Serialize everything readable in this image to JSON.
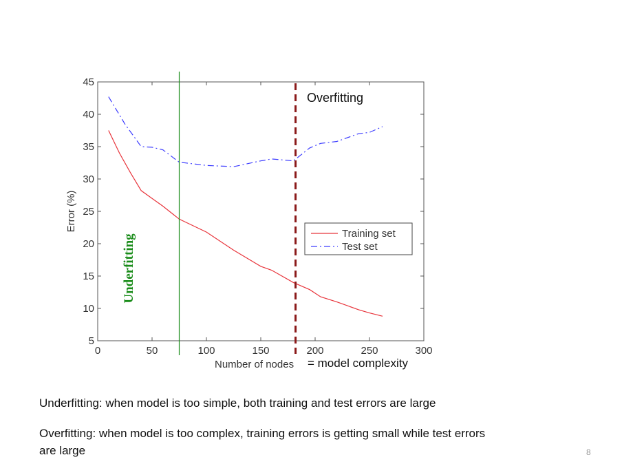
{
  "chart_data": {
    "type": "line",
    "xlabel": "Number of nodes",
    "ylabel": "Error (%)",
    "xlim": [
      0,
      300
    ],
    "ylim": [
      5,
      45
    ],
    "xticks": [
      0,
      50,
      100,
      150,
      200,
      250,
      300
    ],
    "yticks": [
      5,
      10,
      15,
      20,
      25,
      30,
      35,
      40,
      45
    ],
    "grid": false,
    "legend_position": "right",
    "series": [
      {
        "name": "Training set",
        "color": "#e8343b",
        "style": "solid",
        "x": [
          10,
          20,
          30,
          40,
          50,
          60,
          75,
          100,
          125,
          150,
          160,
          180,
          195,
          205,
          220,
          240,
          250,
          262
        ],
        "y": [
          37.5,
          34,
          31,
          28.2,
          27,
          25.8,
          23.8,
          21.8,
          19,
          16.5,
          15.9,
          14,
          12.9,
          11.8,
          11,
          9.8,
          9.3,
          8.8
        ]
      },
      {
        "name": "Test set",
        "color": "#3c3cff",
        "style": "dashdot",
        "x": [
          10,
          25,
          40,
          50,
          60,
          75,
          100,
          125,
          150,
          160,
          180,
          195,
          205,
          220,
          240,
          250,
          262
        ],
        "y": [
          42.7,
          38.5,
          35,
          34.9,
          34.5,
          32.6,
          32.1,
          31.9,
          32.8,
          33.1,
          32.8,
          34.8,
          35.5,
          35.8,
          37,
          37.2,
          38.1
        ]
      }
    ],
    "annotations": {
      "underfitting_label": "Underfitting",
      "overfitting_label": "Overfitting",
      "complexity_label": "= model complexity",
      "underfitting_line_x": 75,
      "overfitting_line_x": 182,
      "underfitting_color": "#1a8c1a",
      "overfitting_color": "#8b1a1a"
    }
  },
  "captions": {
    "underfitting": "Underfitting: when model is too simple, both training and test errors are large",
    "overfitting_line1": "Overfitting: when model is too complex, training errors is getting small while test errors",
    "overfitting_line2": "are large"
  },
  "page_number": "8"
}
